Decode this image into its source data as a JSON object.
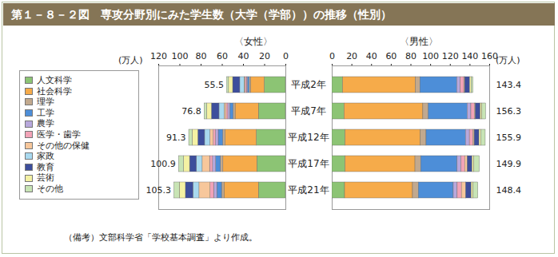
{
  "title": "第１－８－２図　専攻分野別にみた学生数（大学（学部））の推移（性別）",
  "note": "（備考）文部科学省「学校基本調査」より作成。",
  "chart_data": [
    {
      "type": "bar",
      "orientation": "horizontal",
      "stacked": true,
      "title": "〈女性〉",
      "x_label": "(万人)",
      "categories": [
        "平成2年",
        "平成7年",
        "平成12年",
        "平成17年",
        "平成21年"
      ],
      "xlim": [
        0,
        120
      ],
      "xticks": [
        0,
        20,
        40,
        60,
        80,
        100,
        120
      ],
      "totals": [
        55.5,
        76.8,
        91.3,
        100.9,
        105.3
      ],
      "series": [
        {
          "name": "人文科学",
          "color": "#8cc474",
          "values": [
            20.0,
            25.5,
            27.5,
            27.0,
            25.5
          ]
        },
        {
          "name": "社会科学",
          "color": "#f6ab4a",
          "values": [
            13.0,
            22.0,
            29.5,
            32.0,
            32.5
          ]
        },
        {
          "name": "理学",
          "color": "#c2a98e",
          "values": [
            1.2,
            1.9,
            2.2,
            2.3,
            2.3
          ]
        },
        {
          "name": "工学",
          "color": "#4d8ed8",
          "values": [
            1.6,
            3.2,
            4.2,
            4.6,
            4.5
          ]
        },
        {
          "name": "農学",
          "color": "#b8a8dc",
          "values": [
            1.0,
            1.8,
            2.6,
            2.9,
            3.0
          ]
        },
        {
          "name": "医学・歯学",
          "color": "#f2a3b7",
          "values": [
            1.2,
            1.6,
            2.1,
            2.8,
            3.3
          ]
        },
        {
          "name": "その他の保健",
          "color": "#f7c79b",
          "values": [
            1.1,
            1.9,
            3.2,
            7.0,
            10.5
          ]
        },
        {
          "name": "家政",
          "color": "#a9d9ef",
          "values": [
            4.0,
            4.8,
            5.0,
            5.5,
            5.8
          ]
        },
        {
          "name": "教育",
          "color": "#3d4e9c",
          "values": [
            6.7,
            7.2,
            6.4,
            6.4,
            7.0
          ]
        },
        {
          "name": "芸術",
          "color": "#f4f1a3",
          "values": [
            3.9,
            4.5,
            5.3,
            5.7,
            5.8
          ]
        },
        {
          "name": "その他",
          "color": "#c8e4b5",
          "values": [
            1.8,
            2.4,
            3.3,
            4.7,
            5.1
          ]
        }
      ]
    },
    {
      "type": "bar",
      "orientation": "horizontal",
      "stacked": true,
      "title": "〈男性〉",
      "x_label": "(万人)",
      "categories": [
        "平成2年",
        "平成7年",
        "平成12年",
        "平成17年",
        "平成21年"
      ],
      "xlim": [
        0,
        160
      ],
      "xticks": [
        0,
        20,
        40,
        60,
        80,
        100,
        120,
        140,
        160
      ],
      "totals": [
        143.4,
        156.3,
        155.9,
        149.9,
        148.4
      ],
      "series": [
        {
          "name": "人文科学",
          "color": "#8cc474",
          "values": [
            11.0,
            12.5,
            13.5,
            13.5,
            13.0
          ]
        },
        {
          "name": "社会科学",
          "color": "#f6ab4a",
          "values": [
            74.0,
            80.0,
            76.5,
            71.0,
            69.0
          ]
        },
        {
          "name": "理学",
          "color": "#c2a98e",
          "values": [
            4.5,
            5.5,
            5.8,
            5.8,
            5.9
          ]
        },
        {
          "name": "工学",
          "color": "#4d8ed8",
          "values": [
            37.5,
            39.5,
            40.0,
            37.0,
            35.5
          ]
        },
        {
          "name": "農学",
          "color": "#b8a8dc",
          "values": [
            3.5,
            3.8,
            4.0,
            3.9,
            4.0
          ]
        },
        {
          "name": "医学・歯学",
          "color": "#f2a3b7",
          "values": [
            3.6,
            3.5,
            3.5,
            3.8,
            4.3
          ]
        },
        {
          "name": "その他の保健",
          "color": "#f7c79b",
          "values": [
            0.8,
            1.0,
            1.3,
            2.6,
            4.2
          ]
        },
        {
          "name": "家政",
          "color": "#a9d9ef",
          "values": [
            0.1,
            0.1,
            0.1,
            0.2,
            0.3
          ]
        },
        {
          "name": "教育",
          "color": "#3d4e9c",
          "values": [
            5.0,
            4.9,
            4.8,
            4.6,
            5.3
          ]
        },
        {
          "name": "芸術",
          "color": "#f4f1a3",
          "values": [
            1.6,
            1.7,
            1.9,
            1.9,
            2.0
          ]
        },
        {
          "name": "その他",
          "color": "#c8e4b5",
          "values": [
            1.8,
            3.8,
            4.5,
            5.6,
            4.9
          ]
        }
      ]
    }
  ]
}
